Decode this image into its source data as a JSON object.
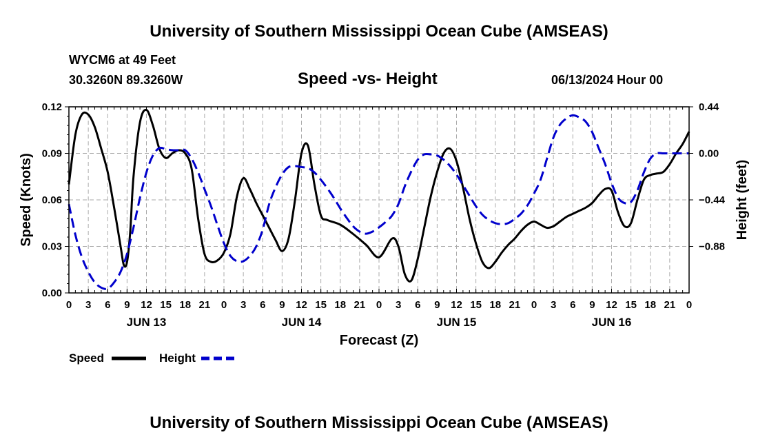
{
  "header": {
    "title": "University of Southern Mississippi Ocean Cube (AMSEAS)",
    "station": "WYCM6 at 49 Feet",
    "coords": "30.3260N  89.3260W",
    "subtitle": "Speed -vs- Height",
    "datetime": "06/13/2024 Hour 00"
  },
  "footer": {
    "title": "University of Southern Mississippi Ocean Cube (AMSEAS)"
  },
  "legend": {
    "speed_label": "Speed",
    "height_label": "Height"
  },
  "colors": {
    "speed": "#000000",
    "height": "#0000cc",
    "grid": "#aaaaaa"
  },
  "chart_data": {
    "type": "line",
    "title": "Speed -vs- Height",
    "xlabel": "Forecast (Z)",
    "ylabel_left": "Speed (Knots)",
    "ylabel_right": "Height (feet)",
    "xlim": [
      0,
      96
    ],
    "ylim_left": [
      0,
      0.12
    ],
    "ylim_right": [
      -1.32,
      0.44
    ],
    "x_ticks": [
      0,
      3,
      6,
      9,
      12,
      15,
      18,
      21,
      24,
      27,
      30,
      33,
      36,
      39,
      42,
      45,
      48,
      51,
      54,
      57,
      60,
      63,
      66,
      69,
      72,
      75,
      78,
      81,
      84,
      87,
      90,
      93,
      96
    ],
    "x_tick_labels": [
      "0",
      "3",
      "6",
      "9",
      "12",
      "15",
      "18",
      "21",
      "0",
      "3",
      "6",
      "9",
      "12",
      "15",
      "18",
      "21",
      "0",
      "3",
      "6",
      "9",
      "12",
      "15",
      "18",
      "21",
      "0",
      "3",
      "6",
      "9",
      "12",
      "15",
      "18",
      "21",
      "0"
    ],
    "day_labels": [
      {
        "x": 12,
        "label": "JUN 13"
      },
      {
        "x": 36,
        "label": "JUN 14"
      },
      {
        "x": 60,
        "label": "JUN 15"
      },
      {
        "x": 84,
        "label": "JUN 16"
      }
    ],
    "left_ticks": [
      0.0,
      0.03,
      0.06,
      0.09,
      0.12
    ],
    "left_tick_labels": [
      "0.00",
      "0.03",
      "0.06",
      "0.09",
      "0.12"
    ],
    "right_ticks": [
      0.44,
      0.0,
      -0.44,
      -0.88
    ],
    "right_tick_labels": [
      "0.44",
      "0.00",
      "−0.44",
      "−0.88"
    ],
    "series": [
      {
        "name": "Speed",
        "axis": "left",
        "style": "solid",
        "x": [
          0,
          1,
          2,
          3,
          4,
          5,
          6,
          7,
          8,
          8.5,
          9,
          9.5,
          10,
          11,
          12,
          13,
          14,
          15,
          16,
          17,
          18,
          19,
          20,
          21,
          22,
          23,
          24,
          25,
          26,
          27,
          28,
          29,
          30,
          31,
          32,
          33,
          34,
          35,
          36,
          37,
          38,
          39,
          40,
          42,
          44,
          46,
          48,
          50,
          51,
          52,
          53,
          54,
          55,
          56,
          57,
          58,
          59,
          60,
          61,
          62,
          63,
          64,
          65,
          66,
          67,
          68,
          69,
          70,
          71,
          72,
          73,
          74,
          75,
          76,
          77,
          78,
          79,
          80,
          81,
          82,
          83,
          84,
          85,
          86,
          87,
          88,
          89,
          90,
          91,
          92,
          93,
          94,
          95,
          96
        ],
        "values": [
          0.07,
          0.102,
          0.115,
          0.115,
          0.107,
          0.093,
          0.078,
          0.055,
          0.03,
          0.018,
          0.02,
          0.04,
          0.075,
          0.11,
          0.118,
          0.108,
          0.093,
          0.087,
          0.09,
          0.092,
          0.09,
          0.08,
          0.048,
          0.025,
          0.02,
          0.021,
          0.026,
          0.038,
          0.062,
          0.074,
          0.067,
          0.058,
          0.05,
          0.042,
          0.034,
          0.027,
          0.035,
          0.06,
          0.09,
          0.095,
          0.07,
          0.05,
          0.047,
          0.044,
          0.038,
          0.031,
          0.023,
          0.035,
          0.03,
          0.012,
          0.008,
          0.022,
          0.042,
          0.062,
          0.078,
          0.09,
          0.093,
          0.085,
          0.068,
          0.048,
          0.032,
          0.02,
          0.016,
          0.02,
          0.026,
          0.031,
          0.035,
          0.04,
          0.044,
          0.046,
          0.044,
          0.042,
          0.043,
          0.046,
          0.049,
          0.051,
          0.053,
          0.055,
          0.058,
          0.063,
          0.067,
          0.066,
          0.052,
          0.043,
          0.045,
          0.06,
          0.073,
          0.076,
          0.077,
          0.078,
          0.083,
          0.09,
          0.096,
          0.104
        ]
      },
      {
        "name": "Height",
        "axis": "right",
        "style": "dashed",
        "x": [
          0,
          1,
          2,
          3,
          4,
          5,
          6,
          7,
          8,
          9,
          10,
          11,
          12,
          13,
          14,
          15,
          16,
          17,
          18,
          19,
          20,
          21,
          22,
          23,
          24,
          25,
          26,
          27,
          28,
          29,
          30,
          31,
          32,
          33,
          34,
          35,
          36,
          37,
          38,
          39,
          40,
          41,
          42,
          43,
          44,
          45,
          46,
          47,
          48,
          49,
          50,
          51,
          52,
          53,
          54,
          55,
          56,
          57,
          58,
          59,
          60,
          61,
          62,
          63,
          64,
          65,
          66,
          67,
          68,
          69,
          70,
          71,
          72,
          73,
          74,
          75,
          76,
          77,
          78,
          79,
          80,
          81,
          82,
          83,
          84,
          85,
          86,
          87,
          88,
          89,
          90,
          91,
          92,
          93,
          94,
          95,
          96
        ],
        "values": [
          -0.48,
          -0.77,
          -0.98,
          -1.12,
          -1.22,
          -1.27,
          -1.28,
          -1.22,
          -1.12,
          -0.95,
          -0.7,
          -0.42,
          -0.18,
          -0.02,
          0.05,
          0.04,
          0.03,
          0.03,
          0.03,
          -0.05,
          -0.18,
          -0.34,
          -0.5,
          -0.68,
          -0.85,
          -0.97,
          -1.02,
          -1.02,
          -0.97,
          -0.88,
          -0.72,
          -0.48,
          -0.32,
          -0.2,
          -0.13,
          -0.12,
          -0.13,
          -0.14,
          -0.18,
          -0.25,
          -0.33,
          -0.42,
          -0.52,
          -0.61,
          -0.69,
          -0.74,
          -0.76,
          -0.74,
          -0.7,
          -0.65,
          -0.59,
          -0.48,
          -0.31,
          -0.17,
          -0.06,
          -0.01,
          -0.01,
          -0.02,
          -0.06,
          -0.12,
          -0.2,
          -0.3,
          -0.4,
          -0.5,
          -0.58,
          -0.63,
          -0.66,
          -0.67,
          -0.66,
          -0.62,
          -0.57,
          -0.49,
          -0.38,
          -0.25,
          -0.05,
          0.15,
          0.27,
          0.33,
          0.36,
          0.34,
          0.3,
          0.2,
          0.05,
          -0.1,
          -0.28,
          -0.42,
          -0.47,
          -0.46,
          -0.35,
          -0.18,
          -0.05,
          0.0,
          0.0,
          0.0,
          0.0,
          0.0,
          0.0
        ]
      }
    ]
  }
}
